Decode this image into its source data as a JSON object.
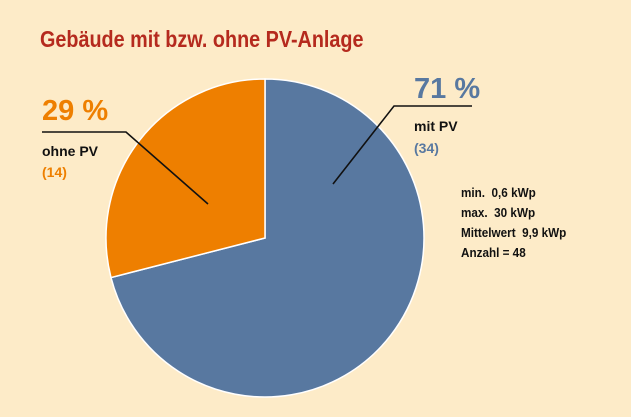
{
  "title": "Gebäude mit bzw. ohne PV-Anlage",
  "colors": {
    "mit_pv": "#5878a0",
    "ohne_pv": "#ee7f00",
    "title": "#b52a1e",
    "background": "#fdebc8"
  },
  "chart_data": {
    "type": "pie",
    "title": "Gebäude mit bzw. ohne PV-Anlage",
    "slices": [
      {
        "name": "mit PV",
        "percent": 71,
        "percent_label": "71 %",
        "count": 34,
        "count_label": "(34)",
        "color": "#5878a0"
      },
      {
        "name": "ohne PV",
        "percent": 29,
        "percent_label": "29 %",
        "count": 14,
        "count_label": "(14)",
        "color": "#ee7f00"
      }
    ],
    "start": "12 o'clock, clockwise"
  },
  "stats": [
    "min.  0,6 kWp",
    "max.  30 kWp",
    "Mittelwert  9,9 kWp",
    "Anzahl = 48"
  ]
}
